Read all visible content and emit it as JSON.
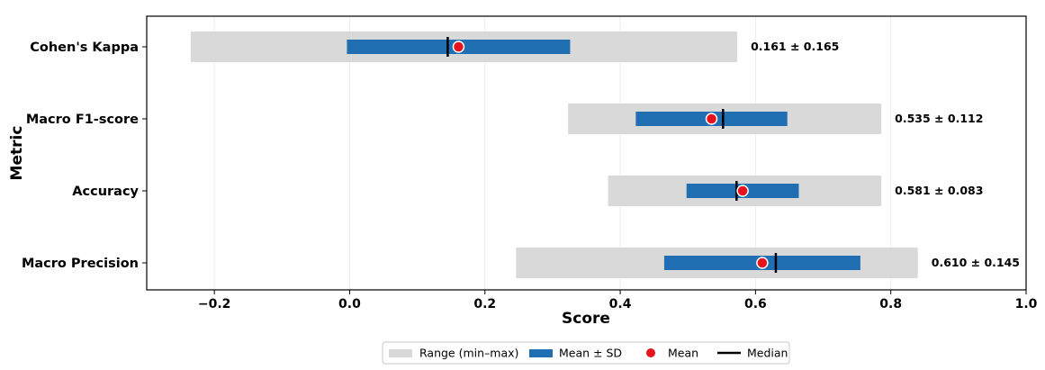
{
  "chart_data": {
    "type": "bar",
    "orientation": "horizontal",
    "xlabel": "Score",
    "ylabel": "Metric",
    "xlim": [
      -0.3,
      1.0
    ],
    "xticks": [
      -0.2,
      0.0,
      0.2,
      0.4,
      0.6,
      0.8,
      1.0
    ],
    "xtick_labels": [
      "−0.2",
      "0.0",
      "0.2",
      "0.4",
      "0.6",
      "0.8",
      "1.0"
    ],
    "grid": "vertical",
    "categories": [
      "Cohen's Kappa",
      "Macro F1-score",
      "Accuracy",
      "Macro Precision"
    ],
    "series": [
      {
        "name": "Range (min–max)",
        "min": [
          -0.235,
          0.323,
          0.382,
          0.246
        ],
        "max": [
          0.573,
          0.786,
          0.786,
          0.84
        ],
        "color": "#d9d9d9"
      },
      {
        "name": "Mean ± SD",
        "low": [
          -0.004,
          0.423,
          0.498,
          0.465
        ],
        "high": [
          0.326,
          0.647,
          0.664,
          0.755
        ],
        "color": "#1f6fb2"
      },
      {
        "name": "Mean",
        "values": [
          0.161,
          0.535,
          0.581,
          0.61
        ],
        "color": "#e8121c"
      },
      {
        "name": "Median",
        "values": [
          0.145,
          0.552,
          0.572,
          0.63
        ],
        "color": "#000000"
      }
    ],
    "annotations": [
      "0.161 ± 0.165",
      "0.535 ± 0.112",
      "0.581 ± 0.083",
      "0.610 ± 0.145"
    ],
    "legend": {
      "placement": "bottom-center",
      "items": [
        {
          "label": "Range (min–max)",
          "marker": "band",
          "color": "#d9d9d9"
        },
        {
          "label": "Mean ± SD",
          "marker": "band",
          "color": "#1f6fb2"
        },
        {
          "label": "Mean",
          "marker": "dot",
          "color": "#e8121c"
        },
        {
          "label": "Median",
          "marker": "line",
          "color": "#000000"
        }
      ]
    }
  }
}
